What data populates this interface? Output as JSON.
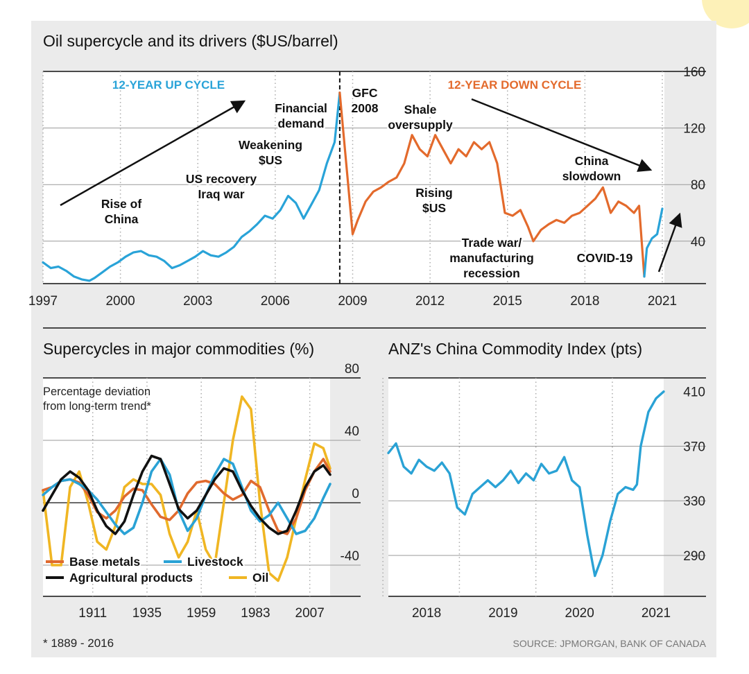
{
  "colors": {
    "oil_blue": "#29a3d8",
    "oil_orange": "#e36a2c",
    "base_metals": "#e06a2e",
    "livestock": "#2aa2d5",
    "agricultural": "#111111",
    "oil": "#f0b623",
    "panel_bg": "#ebebeb",
    "accent_yellow": "#fdf1b8"
  },
  "footnote": "* 1889 - 2016",
  "source": "SOURCE: JPMORGAN, BANK OF CANADA",
  "chart_data": [
    {
      "type": "line",
      "title": "Oil supercycle and its drivers ($US/barrel)",
      "xlabel": "",
      "ylabel": "$US/barrel",
      "xlim": [
        1997,
        2021
      ],
      "ylim": [
        10,
        160
      ],
      "x_ticks": [
        "1997",
        "2000",
        "2003",
        "2006",
        "2009",
        "2012",
        "2015",
        "2018",
        "2021"
      ],
      "y_ticks": [
        "160",
        "120",
        "80",
        "40"
      ],
      "grid": true,
      "divider_x": 2008.5,
      "series": [
        {
          "segment": "up_cycle",
          "x": [
            1997.0,
            1997.3,
            1997.6,
            1997.9,
            1998.2,
            1998.5,
            1998.8,
            1999.0,
            1999.3,
            1999.6,
            1999.9,
            2000.2,
            2000.5,
            2000.8,
            2001.1,
            2001.4,
            2001.7,
            2002.0,
            2002.3,
            2002.6,
            2002.9,
            2003.2,
            2003.5,
            2003.8,
            2004.1,
            2004.4,
            2004.7,
            2005.0,
            2005.3,
            2005.6,
            2005.9,
            2006.2,
            2006.5,
            2006.8,
            2007.1,
            2007.4,
            2007.7,
            2008.0,
            2008.3,
            2008.5
          ],
          "y": [
            25,
            21,
            22,
            19,
            15,
            13,
            12,
            14,
            18,
            22,
            25,
            29,
            32,
            33,
            30,
            29,
            26,
            21,
            23,
            26,
            29,
            33,
            30,
            29,
            32,
            36,
            43,
            47,
            52,
            58,
            56,
            62,
            72,
            67,
            56,
            66,
            76,
            95,
            110,
            145
          ]
        },
        {
          "segment": "down_cycle",
          "x": [
            2008.5,
            2008.6,
            2008.8,
            2009.0,
            2009.2,
            2009.5,
            2009.8,
            2010.1,
            2010.4,
            2010.7,
            2011.0,
            2011.3,
            2011.6,
            2011.9,
            2012.2,
            2012.5,
            2012.8,
            2013.1,
            2013.4,
            2013.7,
            2014.0,
            2014.3,
            2014.6,
            2014.9,
            2015.2,
            2015.5,
            2015.8,
            2016.0,
            2016.3,
            2016.6,
            2016.9,
            2017.2,
            2017.5,
            2017.8,
            2018.1,
            2018.4,
            2018.7,
            2019.0,
            2019.3,
            2019.6,
            2019.9,
            2020.1,
            2020.3
          ],
          "y": [
            145,
            125,
            85,
            45,
            55,
            68,
            75,
            78,
            82,
            85,
            95,
            115,
            105,
            100,
            115,
            105,
            95,
            105,
            100,
            110,
            105,
            110,
            95,
            60,
            58,
            62,
            50,
            40,
            48,
            52,
            55,
            53,
            58,
            60,
            65,
            70,
            78,
            60,
            68,
            65,
            60,
            65,
            15
          ]
        },
        {
          "segment": "recovery",
          "x": [
            2020.3,
            2020.4,
            2020.6,
            2020.8,
            2021.0
          ],
          "y": [
            15,
            35,
            42,
            45,
            63
          ]
        }
      ],
      "annotations": [
        "12-YEAR UP CYCLE",
        "12-YEAR DOWN CYCLE",
        "Rise of China",
        "US recovery Iraq war",
        "Weakening $US",
        "Financial demand",
        "GFC 2008",
        "Shale oversupply",
        "Rising $US",
        "Trade war/ manufacturing recession",
        "China slowdown",
        "COVID-19"
      ]
    },
    {
      "type": "line",
      "title": "Supercycles in major commodities (%)",
      "subtitle": "Percentage deviation from long-term trend*",
      "xlabel": "",
      "ylabel": "%",
      "xlim": [
        1889,
        2016
      ],
      "ylim": [
        -60,
        80
      ],
      "x_ticks": [
        "1911",
        "1935",
        "1959",
        "1983",
        "2007"
      ],
      "y_ticks": [
        "80",
        "40",
        "0",
        "-40"
      ],
      "grid": true,
      "legend_position": "bottom-left",
      "series": [
        {
          "name": "Base metals",
          "x": [
            1889,
            1893,
            1897,
            1901,
            1905,
            1909,
            1913,
            1917,
            1921,
            1925,
            1929,
            1933,
            1937,
            1941,
            1945,
            1949,
            1953,
            1957,
            1961,
            1965,
            1969,
            1973,
            1977,
            1981,
            1985,
            1989,
            1993,
            1997,
            2001,
            2005,
            2009,
            2013,
            2016
          ],
          "y": [
            8,
            10,
            14,
            15,
            13,
            5,
            -6,
            -10,
            -5,
            4,
            9,
            8,
            -1,
            -9,
            -11,
            -5,
            6,
            13,
            14,
            12,
            6,
            2,
            5,
            14,
            10,
            -5,
            -18,
            -20,
            -10,
            8,
            20,
            28,
            20
          ]
        },
        {
          "name": "Livestock",
          "x": [
            1889,
            1893,
            1897,
            1901,
            1905,
            1909,
            1913,
            1917,
            1921,
            1925,
            1929,
            1933,
            1937,
            1941,
            1945,
            1949,
            1953,
            1957,
            1961,
            1965,
            1969,
            1973,
            1977,
            1981,
            1985,
            1989,
            1993,
            1997,
            2001,
            2005,
            2009,
            2013,
            2016
          ],
          "y": [
            5,
            10,
            14,
            15,
            12,
            8,
            2,
            -6,
            -14,
            -20,
            -16,
            0,
            20,
            28,
            18,
            -5,
            -18,
            -10,
            5,
            18,
            28,
            25,
            10,
            -5,
            -12,
            -8,
            0,
            -10,
            -20,
            -18,
            -10,
            3,
            12
          ]
        },
        {
          "name": "Agricultural products",
          "x": [
            1889,
            1893,
            1897,
            1901,
            1905,
            1909,
            1913,
            1917,
            1921,
            1925,
            1929,
            1933,
            1937,
            1941,
            1945,
            1949,
            1953,
            1957,
            1961,
            1965,
            1969,
            1973,
            1977,
            1981,
            1985,
            1989,
            1993,
            1997,
            2001,
            2005,
            2009,
            2013,
            2016
          ],
          "y": [
            -5,
            5,
            15,
            20,
            16,
            8,
            -5,
            -15,
            -20,
            -12,
            5,
            20,
            30,
            28,
            12,
            -4,
            -10,
            -5,
            5,
            15,
            22,
            20,
            8,
            -2,
            -10,
            -16,
            -20,
            -18,
            -5,
            10,
            20,
            24,
            18
          ]
        },
        {
          "name": "Oil",
          "x": [
            1889,
            1893,
            1897,
            1901,
            1905,
            1909,
            1913,
            1917,
            1921,
            1925,
            1929,
            1933,
            1937,
            1941,
            1945,
            1949,
            1953,
            1957,
            1961,
            1965,
            1969,
            1973,
            1977,
            1981,
            1985,
            1989,
            1993,
            1997,
            2001,
            2005,
            2009,
            2013,
            2016
          ],
          "y": [
            8,
            -40,
            -40,
            10,
            20,
            0,
            -25,
            -30,
            -15,
            10,
            15,
            12,
            12,
            5,
            -20,
            -35,
            -25,
            -5,
            -30,
            -40,
            0,
            40,
            68,
            60,
            0,
            -45,
            -50,
            -35,
            -10,
            15,
            38,
            35,
            22
          ]
        }
      ]
    },
    {
      "type": "line",
      "title": "ANZ's China Commodity Index (pts)",
      "xlabel": "",
      "ylabel": "pts",
      "xlim": [
        2017.5,
        2021.1
      ],
      "ylim": [
        260,
        420
      ],
      "x_ticks": [
        "2018",
        "2019",
        "2020",
        "2021"
      ],
      "y_ticks": [
        "410",
        "370",
        "330",
        "290"
      ],
      "grid": true,
      "series": [
        {
          "name": "ANZ's China Commodity Index",
          "x": [
            2017.5,
            2017.6,
            2017.7,
            2017.8,
            2017.9,
            2018.0,
            2018.1,
            2018.2,
            2018.3,
            2018.4,
            2018.5,
            2018.6,
            2018.7,
            2018.8,
            2018.9,
            2019.0,
            2019.1,
            2019.2,
            2019.3,
            2019.4,
            2019.5,
            2019.6,
            2019.7,
            2019.8,
            2019.9,
            2020.0,
            2020.1,
            2020.2,
            2020.3,
            2020.4,
            2020.5,
            2020.6,
            2020.7,
            2020.75,
            2020.8,
            2020.9,
            2021.0,
            2021.1
          ],
          "y": [
            365,
            372,
            355,
            350,
            360,
            355,
            352,
            358,
            350,
            325,
            320,
            335,
            340,
            345,
            340,
            345,
            352,
            343,
            350,
            345,
            357,
            350,
            352,
            362,
            345,
            340,
            305,
            275,
            290,
            315,
            335,
            340,
            338,
            342,
            370,
            395,
            405,
            410
          ]
        }
      ]
    }
  ]
}
